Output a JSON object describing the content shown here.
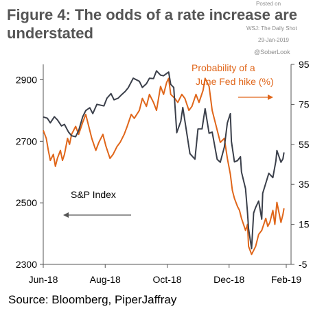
{
  "title": "Figure 4: The odds of a rate increase are understated",
  "credits": {
    "posted_on": "Posted on",
    "publication": "WSJ: The Daily Shot",
    "date": "29-Jan-2019",
    "handle": "@SoberLook"
  },
  "source": "Source: Bloomberg, PiperJaffray",
  "colors": {
    "sp_index": "#3a3f4a",
    "fed_prob": "#e0661a",
    "axis": "#555555"
  },
  "chart_data": {
    "type": "line",
    "x_ticks": [
      "Jun-18",
      "Aug-18",
      "Oct-18",
      "Dec-18",
      "Feb-19"
    ],
    "xlim": [
      "2018-06-01",
      "2019-02-01"
    ],
    "y_left": {
      "ticks": [
        2300,
        2500,
        2700,
        2900
      ],
      "ylim": [
        2300,
        2950
      ]
    },
    "y_right": {
      "ticks": [
        -5,
        15,
        35,
        55,
        75,
        95
      ],
      "ylim": [
        -5,
        95
      ]
    },
    "annotations": {
      "left_series_label": "S&P Index",
      "right_series_label_line1": "Probability of a",
      "right_series_label_line2": "June Fed hike (%)"
    },
    "series": [
      {
        "name": "S&P Index",
        "axis": "left",
        "color": "#3a3f4a",
        "points": [
          [
            "2018-06-01",
            2779
          ],
          [
            "2018-06-05",
            2775
          ],
          [
            "2018-06-08",
            2760
          ],
          [
            "2018-06-12",
            2780
          ],
          [
            "2018-06-15",
            2770
          ],
          [
            "2018-06-19",
            2750
          ],
          [
            "2018-06-22",
            2755
          ],
          [
            "2018-06-26",
            2730
          ],
          [
            "2018-06-29",
            2718
          ],
          [
            "2018-07-03",
            2715
          ],
          [
            "2018-07-06",
            2735
          ],
          [
            "2018-07-10",
            2780
          ],
          [
            "2018-07-13",
            2800
          ],
          [
            "2018-07-17",
            2809
          ],
          [
            "2018-07-20",
            2790
          ],
          [
            "2018-07-24",
            2820
          ],
          [
            "2018-07-27",
            2818
          ],
          [
            "2018-07-31",
            2815
          ],
          [
            "2018-08-03",
            2840
          ],
          [
            "2018-08-07",
            2855
          ],
          [
            "2018-08-10",
            2835
          ],
          [
            "2018-08-14",
            2840
          ],
          [
            "2018-08-17",
            2850
          ],
          [
            "2018-08-21",
            2862
          ],
          [
            "2018-08-24",
            2874
          ],
          [
            "2018-08-29",
            2905
          ],
          [
            "2018-09-04",
            2895
          ],
          [
            "2018-09-07",
            2875
          ],
          [
            "2018-09-11",
            2887
          ],
          [
            "2018-09-14",
            2905
          ],
          [
            "2018-09-18",
            2904
          ],
          [
            "2018-09-21",
            2929
          ],
          [
            "2018-09-25",
            2915
          ],
          [
            "2018-09-28",
            2913
          ],
          [
            "2018-10-03",
            2925
          ],
          [
            "2018-10-05",
            2885
          ],
          [
            "2018-10-08",
            2875
          ],
          [
            "2018-10-11",
            2728
          ],
          [
            "2018-10-15",
            2765
          ],
          [
            "2018-10-17",
            2810
          ],
          [
            "2018-10-19",
            2767
          ],
          [
            "2018-10-24",
            2660
          ],
          [
            "2018-10-29",
            2642
          ],
          [
            "2018-11-01",
            2740
          ],
          [
            "2018-11-05",
            2740
          ],
          [
            "2018-11-08",
            2806
          ],
          [
            "2018-11-12",
            2726
          ],
          [
            "2018-11-15",
            2730
          ],
          [
            "2018-11-20",
            2641
          ],
          [
            "2018-11-23",
            2632
          ],
          [
            "2018-11-27",
            2681
          ],
          [
            "2018-11-30",
            2760
          ],
          [
            "2018-12-03",
            2790
          ],
          [
            "2018-12-04",
            2700
          ],
          [
            "2018-12-07",
            2633
          ],
          [
            "2018-12-10",
            2637
          ],
          [
            "2018-12-13",
            2650
          ],
          [
            "2018-12-14",
            2600
          ],
          [
            "2018-12-18",
            2546
          ],
          [
            "2018-12-20",
            2467
          ],
          [
            "2018-12-21",
            2416
          ],
          [
            "2018-12-24",
            2351
          ],
          [
            "2018-12-26",
            2467
          ],
          [
            "2018-12-28",
            2485
          ],
          [
            "2018-12-31",
            2506
          ],
          [
            "2019-01-03",
            2447
          ],
          [
            "2019-01-04",
            2531
          ],
          [
            "2019-01-08",
            2574
          ],
          [
            "2019-01-10",
            2596
          ],
          [
            "2019-01-14",
            2582
          ],
          [
            "2019-01-17",
            2636
          ],
          [
            "2019-01-18",
            2670
          ],
          [
            "2019-01-22",
            2632
          ],
          [
            "2019-01-24",
            2643
          ],
          [
            "2019-01-25",
            2664
          ]
        ]
      },
      {
        "name": "Probability of a June Fed hike (%)",
        "axis": "right",
        "color": "#e0661a",
        "points": [
          [
            "2018-06-01",
            62
          ],
          [
            "2018-06-04",
            58
          ],
          [
            "2018-06-06",
            52
          ],
          [
            "2018-06-08",
            47
          ],
          [
            "2018-06-11",
            50
          ],
          [
            "2018-06-13",
            44
          ],
          [
            "2018-06-15",
            48
          ],
          [
            "2018-06-18",
            52
          ],
          [
            "2018-06-20",
            47
          ],
          [
            "2018-06-22",
            50
          ],
          [
            "2018-06-25",
            58
          ],
          [
            "2018-06-27",
            55
          ],
          [
            "2018-06-29",
            60
          ],
          [
            "2018-07-03",
            64
          ],
          [
            "2018-07-06",
            60
          ],
          [
            "2018-07-10",
            66
          ],
          [
            "2018-07-13",
            70
          ],
          [
            "2018-07-16",
            64
          ],
          [
            "2018-07-19",
            58
          ],
          [
            "2018-07-23",
            52
          ],
          [
            "2018-07-26",
            56
          ],
          [
            "2018-07-30",
            60
          ],
          [
            "2018-08-02",
            54
          ],
          [
            "2018-08-06",
            48
          ],
          [
            "2018-08-09",
            50
          ],
          [
            "2018-08-13",
            54
          ],
          [
            "2018-08-16",
            56
          ],
          [
            "2018-08-20",
            60
          ],
          [
            "2018-08-23",
            64
          ],
          [
            "2018-08-27",
            70
          ],
          [
            "2018-08-30",
            68
          ],
          [
            "2018-09-04",
            72
          ],
          [
            "2018-09-07",
            78
          ],
          [
            "2018-09-11",
            74
          ],
          [
            "2018-09-14",
            80
          ],
          [
            "2018-09-18",
            76
          ],
          [
            "2018-09-21",
            72
          ],
          [
            "2018-09-25",
            84
          ],
          [
            "2018-09-28",
            80
          ],
          [
            "2018-10-01",
            86
          ],
          [
            "2018-10-03",
            88
          ],
          [
            "2018-10-05",
            80
          ],
          [
            "2018-10-09",
            78
          ],
          [
            "2018-10-12",
            76
          ],
          [
            "2018-10-16",
            80
          ],
          [
            "2018-10-19",
            78
          ],
          [
            "2018-10-23",
            72
          ],
          [
            "2018-10-26",
            74
          ],
          [
            "2018-10-30",
            80
          ],
          [
            "2018-11-02",
            76
          ],
          [
            "2018-11-06",
            82
          ],
          [
            "2018-11-08",
            88
          ],
          [
            "2018-11-12",
            84
          ],
          [
            "2018-11-15",
            72
          ],
          [
            "2018-11-19",
            64
          ],
          [
            "2018-11-23",
            56
          ],
          [
            "2018-11-27",
            58
          ],
          [
            "2018-11-30",
            48
          ],
          [
            "2018-12-03",
            40
          ],
          [
            "2018-12-05",
            32
          ],
          [
            "2018-12-07",
            28
          ],
          [
            "2018-12-10",
            24
          ],
          [
            "2018-12-12",
            22
          ],
          [
            "2018-12-14",
            18
          ],
          [
            "2018-12-18",
            12
          ],
          [
            "2018-12-20",
            15
          ],
          [
            "2018-12-21",
            4
          ],
          [
            "2018-12-24",
            0
          ],
          [
            "2018-12-26",
            2
          ],
          [
            "2018-12-28",
            4
          ],
          [
            "2018-12-31",
            10
          ],
          [
            "2019-01-03",
            12
          ],
          [
            "2019-01-07",
            18
          ],
          [
            "2019-01-09",
            14
          ],
          [
            "2019-01-11",
            16
          ],
          [
            "2019-01-14",
            22
          ],
          [
            "2019-01-16",
            15
          ],
          [
            "2019-01-18",
            26
          ],
          [
            "2019-01-22",
            16
          ],
          [
            "2019-01-24",
            20
          ],
          [
            "2019-01-25",
            23
          ]
        ]
      }
    ]
  }
}
